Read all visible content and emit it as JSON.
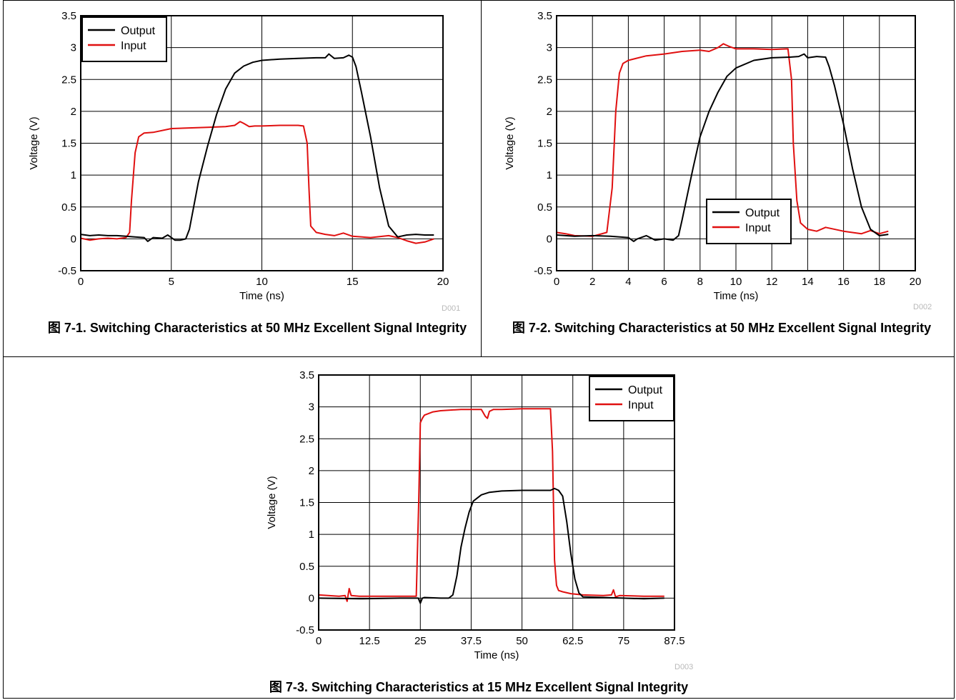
{
  "chart_data": [
    {
      "type": "line",
      "id_label": "D001",
      "caption": "图 7-1. Switching Characteristics at 50 MHz Excellent Signal Integrity",
      "xlabel": "Time (ns)",
      "ylabel": "Voltage (V)",
      "xlim": [
        0,
        20
      ],
      "ylim": [
        -0.5,
        3.5
      ],
      "xticks": [
        0,
        5,
        10,
        15,
        20
      ],
      "xtick_labels": [
        "0",
        "5",
        "10",
        "15",
        "20"
      ],
      "yticks": [
        -0.5,
        0,
        0.5,
        1,
        1.5,
        2,
        2.5,
        3,
        3.5
      ],
      "ytick_labels": [
        "-0.5",
        "0",
        "0.5",
        "1",
        "1.5",
        "2",
        "2.5",
        "3",
        "3.5"
      ],
      "xgrid": [
        0,
        5,
        10,
        15,
        20
      ],
      "ygrid": [
        -0.5,
        0,
        0.5,
        1,
        1.5,
        2,
        2.5,
        3,
        3.5
      ],
      "grid": true,
      "legend": "top-left",
      "series": [
        {
          "name": "Output",
          "color": "#000000",
          "x": [
            0,
            0.5,
            1,
            1.5,
            2,
            2.5,
            3,
            3.5,
            3.7,
            4,
            4.5,
            4.8,
            5,
            5.2,
            5.5,
            5.8,
            6,
            6.2,
            6.5,
            7,
            7.5,
            8,
            8.5,
            9,
            9.5,
            10,
            11,
            12,
            13,
            13.5,
            13.7,
            14,
            14.5,
            14.8,
            15,
            15.2,
            15.5,
            16,
            16.5,
            17,
            17.5,
            18,
            18.5,
            19,
            19.5
          ],
          "y": [
            0.07,
            0.05,
            0.06,
            0.05,
            0.05,
            0.04,
            0.03,
            0.02,
            -0.04,
            0.02,
            0.01,
            0.06,
            0.02,
            -0.02,
            -0.02,
            0.0,
            0.15,
            0.45,
            0.9,
            1.45,
            1.95,
            2.35,
            2.6,
            2.71,
            2.77,
            2.8,
            2.82,
            2.83,
            2.84,
            2.84,
            2.9,
            2.83,
            2.84,
            2.88,
            2.85,
            2.7,
            2.3,
            1.6,
            0.8,
            0.2,
            0.03,
            0.06,
            0.07,
            0.06,
            0.06
          ]
        },
        {
          "name": "Input",
          "color": "#e01010",
          "x": [
            0,
            0.5,
            1,
            1.5,
            2,
            2.5,
            2.7,
            2.8,
            3,
            3.2,
            3.5,
            4,
            5,
            6,
            7,
            8,
            8.5,
            8.8,
            9,
            9.3,
            9.6,
            10,
            11,
            12,
            12.3,
            12.5,
            12.6,
            12.7,
            13,
            13.5,
            14,
            14.5,
            15,
            16,
            17,
            17.5,
            18,
            18.5,
            19,
            19.5
          ],
          "y": [
            0.01,
            -0.02,
            0.0,
            0.01,
            0.0,
            0.02,
            0.1,
            0.6,
            1.35,
            1.6,
            1.66,
            1.67,
            1.73,
            1.74,
            1.75,
            1.76,
            1.78,
            1.84,
            1.81,
            1.76,
            1.77,
            1.77,
            1.78,
            1.78,
            1.77,
            1.5,
            0.8,
            0.2,
            0.1,
            0.07,
            0.05,
            0.09,
            0.04,
            0.02,
            0.05,
            0.02,
            -0.03,
            -0.07,
            -0.05,
            0.0
          ]
        }
      ]
    },
    {
      "type": "line",
      "id_label": "D002",
      "caption": "图 7-2. Switching Characteristics at 50 MHz Excellent Signal Integrity",
      "xlabel": "Time (ns)",
      "ylabel": "Voltage (V)",
      "xlim": [
        0,
        20
      ],
      "ylim": [
        -0.5,
        3.5
      ],
      "xticks": [
        0,
        2,
        4,
        6,
        8,
        10,
        12,
        14,
        16,
        18,
        20
      ],
      "xtick_labels": [
        "0",
        "2",
        "4",
        "6",
        "8",
        "10",
        "12",
        "14",
        "16",
        "18",
        "20"
      ],
      "yticks": [
        -0.5,
        0,
        0.5,
        1,
        1.5,
        2,
        2.5,
        3,
        3.5
      ],
      "ytick_labels": [
        "-0.5",
        "0",
        "0.5",
        "1",
        "1.5",
        "2",
        "2.5",
        "3",
        "3.5"
      ],
      "xgrid": [
        0,
        2,
        4,
        6,
        8,
        10,
        12,
        14,
        16,
        18,
        20
      ],
      "ygrid": [
        -0.5,
        0,
        0.5,
        1,
        1.5,
        2,
        2.5,
        3,
        3.5
      ],
      "grid": true,
      "legend": "center-right",
      "series": [
        {
          "name": "Output",
          "color": "#000000",
          "x": [
            0,
            0.5,
            1,
            2,
            3,
            4,
            4.3,
            4.5,
            5,
            5.5,
            6,
            6.5,
            6.8,
            7,
            7.3,
            7.6,
            8,
            8.5,
            9,
            9.5,
            10,
            11,
            12,
            13,
            13.5,
            13.8,
            14,
            14.5,
            15,
            15.2,
            15.5,
            16,
            16.5,
            17,
            17.5,
            18,
            18.5
          ],
          "y": [
            0.06,
            0.05,
            0.04,
            0.05,
            0.04,
            0.02,
            -0.04,
            0.0,
            0.05,
            -0.02,
            0.0,
            -0.02,
            0.05,
            0.3,
            0.7,
            1.1,
            1.6,
            2.0,
            2.3,
            2.55,
            2.68,
            2.8,
            2.84,
            2.85,
            2.86,
            2.9,
            2.84,
            2.86,
            2.85,
            2.7,
            2.4,
            1.8,
            1.1,
            0.5,
            0.15,
            0.05,
            0.07
          ]
        },
        {
          "name": "Input",
          "color": "#e01010",
          "x": [
            0,
            0.5,
            1,
            2,
            2.8,
            3.1,
            3.3,
            3.5,
            3.7,
            4,
            5,
            6,
            7,
            8,
            8.5,
            9,
            9.3,
            9.6,
            10,
            11,
            12,
            12.9,
            13.1,
            13.2,
            13.4,
            13.6,
            14,
            14.5,
            15,
            16,
            17,
            17.5,
            18,
            18.5
          ],
          "y": [
            0.1,
            0.08,
            0.05,
            0.04,
            0.1,
            0.8,
            2.0,
            2.6,
            2.75,
            2.8,
            2.87,
            2.9,
            2.94,
            2.96,
            2.94,
            3.0,
            3.06,
            3.02,
            2.98,
            2.98,
            2.97,
            2.98,
            2.5,
            1.5,
            0.6,
            0.25,
            0.15,
            0.12,
            0.18,
            0.12,
            0.08,
            0.13,
            0.08,
            0.12
          ]
        }
      ]
    },
    {
      "type": "line",
      "id_label": "D003",
      "caption": "图 7-3. Switching Characteristics at 15 MHz Excellent Signal Integrity",
      "xlabel": "Time (ns)",
      "ylabel": "Voltage (V)",
      "xlim": [
        0,
        87.5
      ],
      "ylim": [
        -0.5,
        3.5
      ],
      "xticks": [
        0,
        12.5,
        25,
        37.5,
        50,
        62.5,
        75,
        87.5
      ],
      "xtick_labels": [
        "0",
        "12.5",
        "25",
        "37.5",
        "50",
        "62.5",
        "75",
        "87.5"
      ],
      "yticks": [
        -0.5,
        0,
        0.5,
        1,
        1.5,
        2,
        2.5,
        3,
        3.5
      ],
      "ytick_labels": [
        "-0.5",
        "0",
        "0.5",
        "1",
        "1.5",
        "2",
        "2.5",
        "3",
        "3.5"
      ],
      "xgrid": [
        0,
        12.5,
        25,
        37.5,
        50,
        62.5,
        75,
        87.5
      ],
      "ygrid": [
        -0.5,
        0,
        0.5,
        1,
        1.5,
        2,
        2.5,
        3,
        3.5
      ],
      "grid": true,
      "legend": "top-right",
      "series": [
        {
          "name": "Output",
          "color": "#000000",
          "x": [
            0,
            10,
            20,
            24.5,
            25,
            25.5,
            26,
            30,
            32,
            33,
            34,
            35,
            36,
            37,
            38,
            40,
            42,
            45,
            50,
            55,
            57,
            58,
            59,
            60,
            61,
            62,
            63,
            64,
            65,
            70,
            75,
            80,
            85
          ],
          "y": [
            0.0,
            -0.01,
            0.0,
            0.0,
            -0.08,
            0.0,
            0.01,
            0.0,
            0.0,
            0.05,
            0.35,
            0.8,
            1.1,
            1.35,
            1.52,
            1.62,
            1.66,
            1.68,
            1.69,
            1.69,
            1.69,
            1.72,
            1.69,
            1.6,
            1.2,
            0.7,
            0.3,
            0.08,
            0.02,
            0.01,
            0.0,
            -0.01,
            0.0
          ]
        },
        {
          "name": "Input",
          "color": "#e01010",
          "x": [
            0,
            5,
            6.5,
            7,
            7.5,
            8,
            10,
            15,
            20,
            24,
            24.6,
            25,
            25.5,
            26,
            28,
            30,
            35,
            40,
            41,
            41.5,
            42,
            43,
            45,
            50,
            55,
            57,
            57.5,
            58,
            58.5,
            59,
            60,
            62,
            65,
            70,
            72,
            72.5,
            73,
            74,
            80,
            85
          ],
          "y": [
            0.05,
            0.03,
            0.04,
            -0.05,
            0.15,
            0.04,
            0.03,
            0.03,
            0.03,
            0.03,
            1.5,
            2.75,
            2.82,
            2.87,
            2.92,
            2.94,
            2.96,
            2.96,
            2.85,
            2.82,
            2.93,
            2.96,
            2.96,
            2.97,
            2.97,
            2.97,
            2.3,
            0.6,
            0.2,
            0.12,
            0.1,
            0.07,
            0.05,
            0.04,
            0.05,
            0.13,
            0.02,
            0.04,
            0.03,
            0.03
          ]
        }
      ]
    }
  ]
}
